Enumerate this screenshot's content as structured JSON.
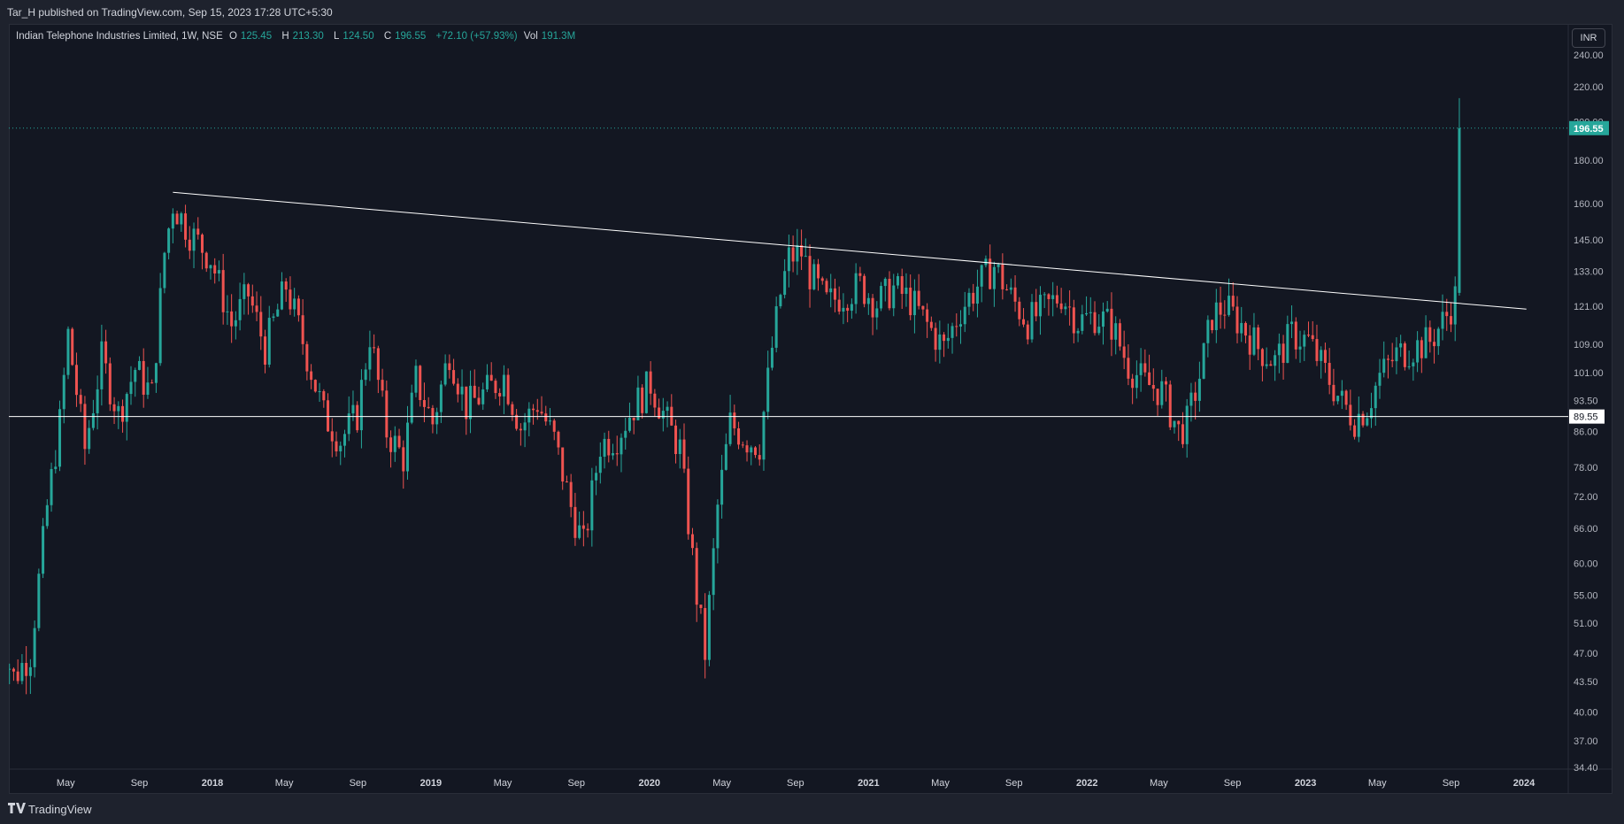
{
  "publisher_line": "Tar_H published on TradingView.com, Sep 15, 2023 17:28 UTC+5:30",
  "legend": {
    "symbol": "Indian Telephone Industries Limited, 1W, NSE",
    "o_label": "O",
    "o_value": "125.45",
    "h_label": "H",
    "h_value": "213.30",
    "l_label": "L",
    "l_value": "124.50",
    "c_label": "C",
    "c_value": "196.55",
    "change": "+72.10 (+57.93%)",
    "vol_label": "Vol",
    "vol_value": "191.3M"
  },
  "currency_button": "INR",
  "brand": "TradingView",
  "colors": {
    "up": "#26a69a",
    "down": "#ef5350",
    "background": "#131722",
    "line": "#ffffff"
  },
  "chart_data": {
    "type": "candlestick",
    "scale": "log",
    "y_ticks": [
      "240.00",
      "220.00",
      "200.00",
      "180.00",
      "160.00",
      "145.00",
      "133.00",
      "121.00",
      "109.00",
      "101.00",
      "93.50",
      "86.00",
      "78.00",
      "72.00",
      "66.00",
      "60.00",
      "55.00",
      "51.00",
      "47.00",
      "43.50",
      "40.00",
      "37.00",
      "34.40"
    ],
    "x_ticks": [
      "May",
      "Sep",
      "2018",
      "May",
      "Sep",
      "2019",
      "May",
      "Sep",
      "2020",
      "May",
      "Sep",
      "2021",
      "May",
      "Sep",
      "2022",
      "May",
      "Sep",
      "2023",
      "May",
      "Sep",
      "2024"
    ],
    "ylim": [
      34.4,
      245
    ],
    "last_price": {
      "label": "196.55",
      "value": 196.55
    },
    "horizontal_line": {
      "label": "89.55",
      "value": 89.55
    },
    "trendline": {
      "from": {
        "date": "2017-10-27",
        "value": 165
      },
      "to": {
        "date": "2024-01-05",
        "value": 120
      }
    },
    "weekly_close_path": [
      {
        "date": "2017-01-06",
        "value": 50
      },
      {
        "date": "2017-02-03",
        "value": 44
      },
      {
        "date": "2017-03-03",
        "value": 47
      },
      {
        "date": "2017-03-31",
        "value": 70
      },
      {
        "date": "2017-04-21",
        "value": 88
      },
      {
        "date": "2017-05-05",
        "value": 112
      },
      {
        "date": "2017-06-02",
        "value": 82
      },
      {
        "date": "2017-06-30",
        "value": 105
      },
      {
        "date": "2017-07-28",
        "value": 90
      },
      {
        "date": "2017-08-25",
        "value": 102
      },
      {
        "date": "2017-09-22",
        "value": 95
      },
      {
        "date": "2017-10-13",
        "value": 140
      },
      {
        "date": "2017-10-27",
        "value": 160
      },
      {
        "date": "2017-11-24",
        "value": 148
      },
      {
        "date": "2017-12-29",
        "value": 138
      },
      {
        "date": "2018-02-02",
        "value": 115
      },
      {
        "date": "2018-03-02",
        "value": 125
      },
      {
        "date": "2018-03-30",
        "value": 108
      },
      {
        "date": "2018-05-04",
        "value": 128
      },
      {
        "date": "2018-06-01",
        "value": 110
      },
      {
        "date": "2018-07-06",
        "value": 90
      },
      {
        "date": "2018-08-03",
        "value": 84
      },
      {
        "date": "2018-08-31",
        "value": 90
      },
      {
        "date": "2018-09-21",
        "value": 112
      },
      {
        "date": "2018-10-19",
        "value": 86
      },
      {
        "date": "2018-11-16",
        "value": 80
      },
      {
        "date": "2018-12-07",
        "value": 99
      },
      {
        "date": "2019-01-04",
        "value": 88
      },
      {
        "date": "2019-02-01",
        "value": 107
      },
      {
        "date": "2019-03-01",
        "value": 92
      },
      {
        "date": "2019-04-05",
        "value": 96
      },
      {
        "date": "2019-05-03",
        "value": 100
      },
      {
        "date": "2019-05-31",
        "value": 87
      },
      {
        "date": "2019-06-28",
        "value": 93
      },
      {
        "date": "2019-07-26",
        "value": 84
      },
      {
        "date": "2019-08-23",
        "value": 70
      },
      {
        "date": "2019-09-13",
        "value": 63
      },
      {
        "date": "2019-10-11",
        "value": 83
      },
      {
        "date": "2019-11-08",
        "value": 85
      },
      {
        "date": "2019-12-06",
        "value": 92
      },
      {
        "date": "2020-01-03",
        "value": 98
      },
      {
        "date": "2020-01-31",
        "value": 88
      },
      {
        "date": "2020-02-21",
        "value": 82
      },
      {
        "date": "2020-03-20",
        "value": 55
      },
      {
        "date": "2020-04-03",
        "value": 47
      },
      {
        "date": "2020-04-24",
        "value": 70
      },
      {
        "date": "2020-05-15",
        "value": 88
      },
      {
        "date": "2020-06-12",
        "value": 84
      },
      {
        "date": "2020-07-03",
        "value": 83
      },
      {
        "date": "2020-07-24",
        "value": 108
      },
      {
        "date": "2020-08-07",
        "value": 125
      },
      {
        "date": "2020-08-21",
        "value": 138
      },
      {
        "date": "2020-09-11",
        "value": 140
      },
      {
        "date": "2020-09-25",
        "value": 132
      },
      {
        "date": "2020-10-23",
        "value": 122
      },
      {
        "date": "2020-11-20",
        "value": 125
      },
      {
        "date": "2020-12-18",
        "value": 128
      },
      {
        "date": "2021-01-15",
        "value": 122
      },
      {
        "date": "2021-02-12",
        "value": 127
      },
      {
        "date": "2021-03-12",
        "value": 123
      },
      {
        "date": "2021-04-09",
        "value": 115
      },
      {
        "date": "2021-05-07",
        "value": 108
      },
      {
        "date": "2021-06-04",
        "value": 120
      },
      {
        "date": "2021-07-02",
        "value": 128
      },
      {
        "date": "2021-07-30",
        "value": 135
      },
      {
        "date": "2021-08-27",
        "value": 124
      },
      {
        "date": "2021-09-24",
        "value": 116
      },
      {
        "date": "2021-10-22",
        "value": 120
      },
      {
        "date": "2021-11-19",
        "value": 125
      },
      {
        "date": "2021-12-17",
        "value": 116
      },
      {
        "date": "2022-01-14",
        "value": 118
      },
      {
        "date": "2022-02-11",
        "value": 115
      },
      {
        "date": "2022-03-11",
        "value": 103
      },
      {
        "date": "2022-04-08",
        "value": 98
      },
      {
        "date": "2022-05-06",
        "value": 96
      },
      {
        "date": "2022-06-03",
        "value": 86
      },
      {
        "date": "2022-06-17",
        "value": 88
      },
      {
        "date": "2022-07-08",
        "value": 100
      },
      {
        "date": "2022-07-29",
        "value": 118
      },
      {
        "date": "2022-08-19",
        "value": 121
      },
      {
        "date": "2022-09-16",
        "value": 115
      },
      {
        "date": "2022-10-14",
        "value": 108
      },
      {
        "date": "2022-11-11",
        "value": 104
      },
      {
        "date": "2022-12-09",
        "value": 112
      },
      {
        "date": "2023-01-06",
        "value": 110
      },
      {
        "date": "2023-02-03",
        "value": 101
      },
      {
        "date": "2023-03-03",
        "value": 93
      },
      {
        "date": "2023-03-24",
        "value": 89
      },
      {
        "date": "2023-04-14",
        "value": 92
      },
      {
        "date": "2023-05-05",
        "value": 100
      },
      {
        "date": "2023-06-02",
        "value": 106
      },
      {
        "date": "2023-06-30",
        "value": 108
      },
      {
        "date": "2023-07-28",
        "value": 110
      },
      {
        "date": "2023-08-25",
        "value": 118
      },
      {
        "date": "2023-09-08",
        "value": 124
      },
      {
        "date": "2023-09-15",
        "value": 196.55
      }
    ]
  }
}
